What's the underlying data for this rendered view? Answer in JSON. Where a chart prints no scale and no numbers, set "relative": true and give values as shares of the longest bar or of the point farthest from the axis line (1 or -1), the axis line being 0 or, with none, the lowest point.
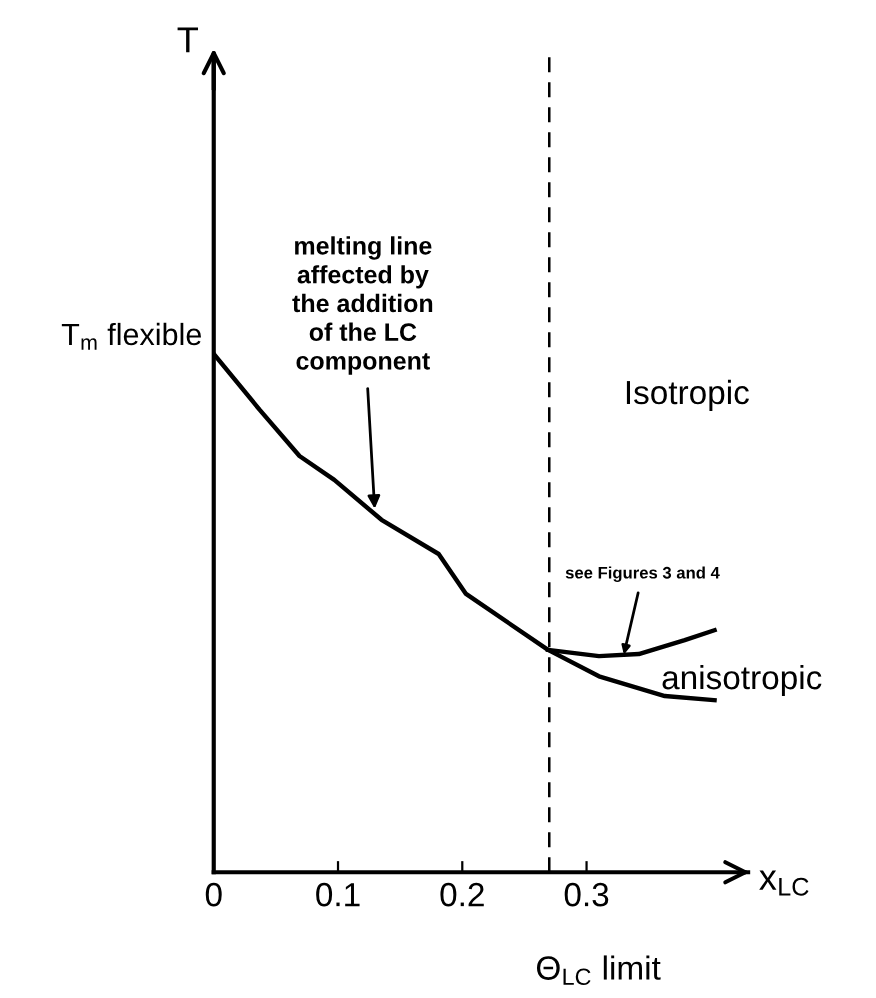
{
  "chart_data": {
    "type": "line",
    "relative": true,
    "xlabel": "x$_{LC}$",
    "x": [
      0,
      0.037,
      0.069,
      0.097,
      0.135,
      0.181,
      0.203,
      0.269,
      0.31,
      0.363,
      0.403
    ],
    "series": [
      {
        "color": "#000000",
        "values": [
          1.0,
          0.892,
          0.803,
          0.757,
          0.68,
          0.614,
          0.537,
          0.429,
          0.378,
          0.34,
          0.332
        ]
      },
      {
        "color": "#000000",
        "x": [
          0.269,
          0.31,
          0.342,
          0.379,
          0.403
        ],
        "values": [
          0.429,
          0.417,
          0.421,
          0.448,
          0.467
        ]
      }
    ],
    "xlim": [
      0,
      0.43
    ],
    "xticks": [
      0,
      0.1,
      0.2,
      0.3
    ],
    "ref_lines": [
      {
        "axis": "x",
        "value": 0.27,
        "label": "Θ$_{LC}$ limit",
        "line_style": "dashed",
        "color": "#000000"
      }
    ],
    "annotations": [
      {
        "text": "T$_{m}$ flexible",
        "x": 0,
        "y": 1.0
      },
      "T",
      {
        "text": "melting line\naffected by\nthe addition\nof the LC\ncomponent",
        "x": 0.13,
        "y": 0.68
      },
      "Isotropic",
      "anisotropic",
      {
        "text": "see Figures 3 and 4",
        "x": 0.33,
        "y": 0.42
      }
    ],
    "grid": false,
    "line_style": "solid",
    "marker": "none"
  }
}
